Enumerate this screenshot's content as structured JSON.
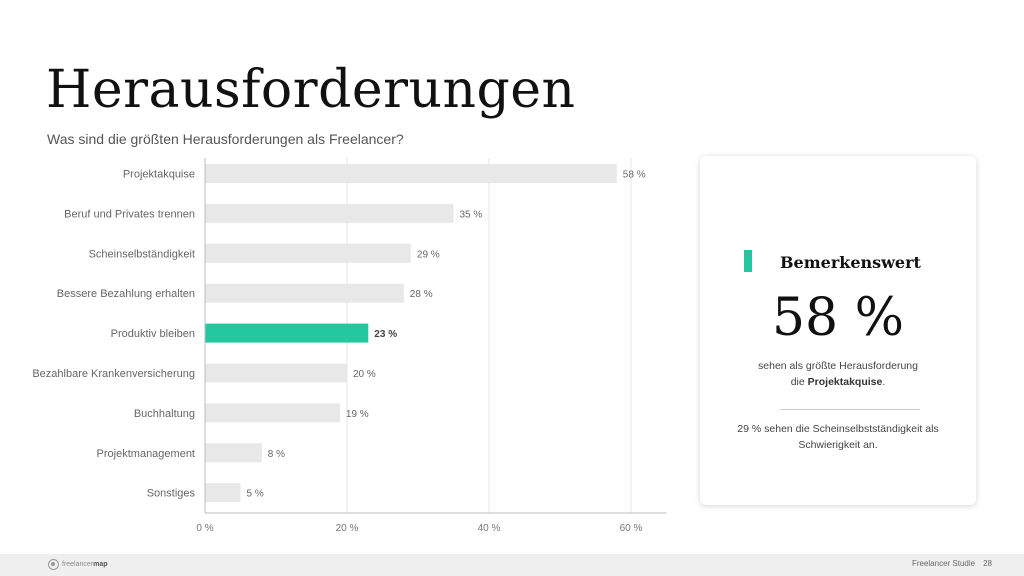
{
  "header": {
    "title": "Herausforderungen",
    "subtitle": "Was sind die größten Herausforderungen als Freelancer?"
  },
  "chart_data": {
    "type": "bar",
    "orientation": "horizontal",
    "categories": [
      "Projektakquise",
      "Beruf und Privates trennen",
      "Scheinselbständigkeit",
      "Bessere Bezahlung erhalten",
      "Produktiv bleiben",
      "Bezahlbare Krankenversicherung",
      "Buchhaltung",
      "Projektmanagement",
      "Sonstiges"
    ],
    "values": [
      58,
      35,
      29,
      28,
      23,
      20,
      19,
      8,
      5
    ],
    "value_labels": [
      "58 %",
      "35 %",
      "29 %",
      "28 %",
      "23 %",
      "20 %",
      "19 %",
      "8 %",
      "5 %"
    ],
    "highlight_index": 4,
    "xlim": [
      0,
      65
    ],
    "xticks": [
      0,
      20,
      40,
      60
    ],
    "xtick_labels": [
      "0 %",
      "20 %",
      "40 %",
      "60 %"
    ],
    "grid": true,
    "colors": {
      "bar": "#e8e8e8",
      "highlight": "#24c8a0",
      "grid": "#e6e6e6"
    }
  },
  "card": {
    "heading": "Bemerkenswert",
    "big_value": "58 %",
    "text1_line1": "sehen als größte Herausforderung",
    "text1_prefix": "die ",
    "text1_bold": "Projektakquise",
    "text1_suffix": ".",
    "text2": "29 % sehen die Scheinselbstständigkeit als Schwierigkeit an.",
    "accent_color": "#24c8a0"
  },
  "footer": {
    "logo_main": "freelancer",
    "logo_bold": "map",
    "study": "Freelancer Studie",
    "page": "28"
  }
}
